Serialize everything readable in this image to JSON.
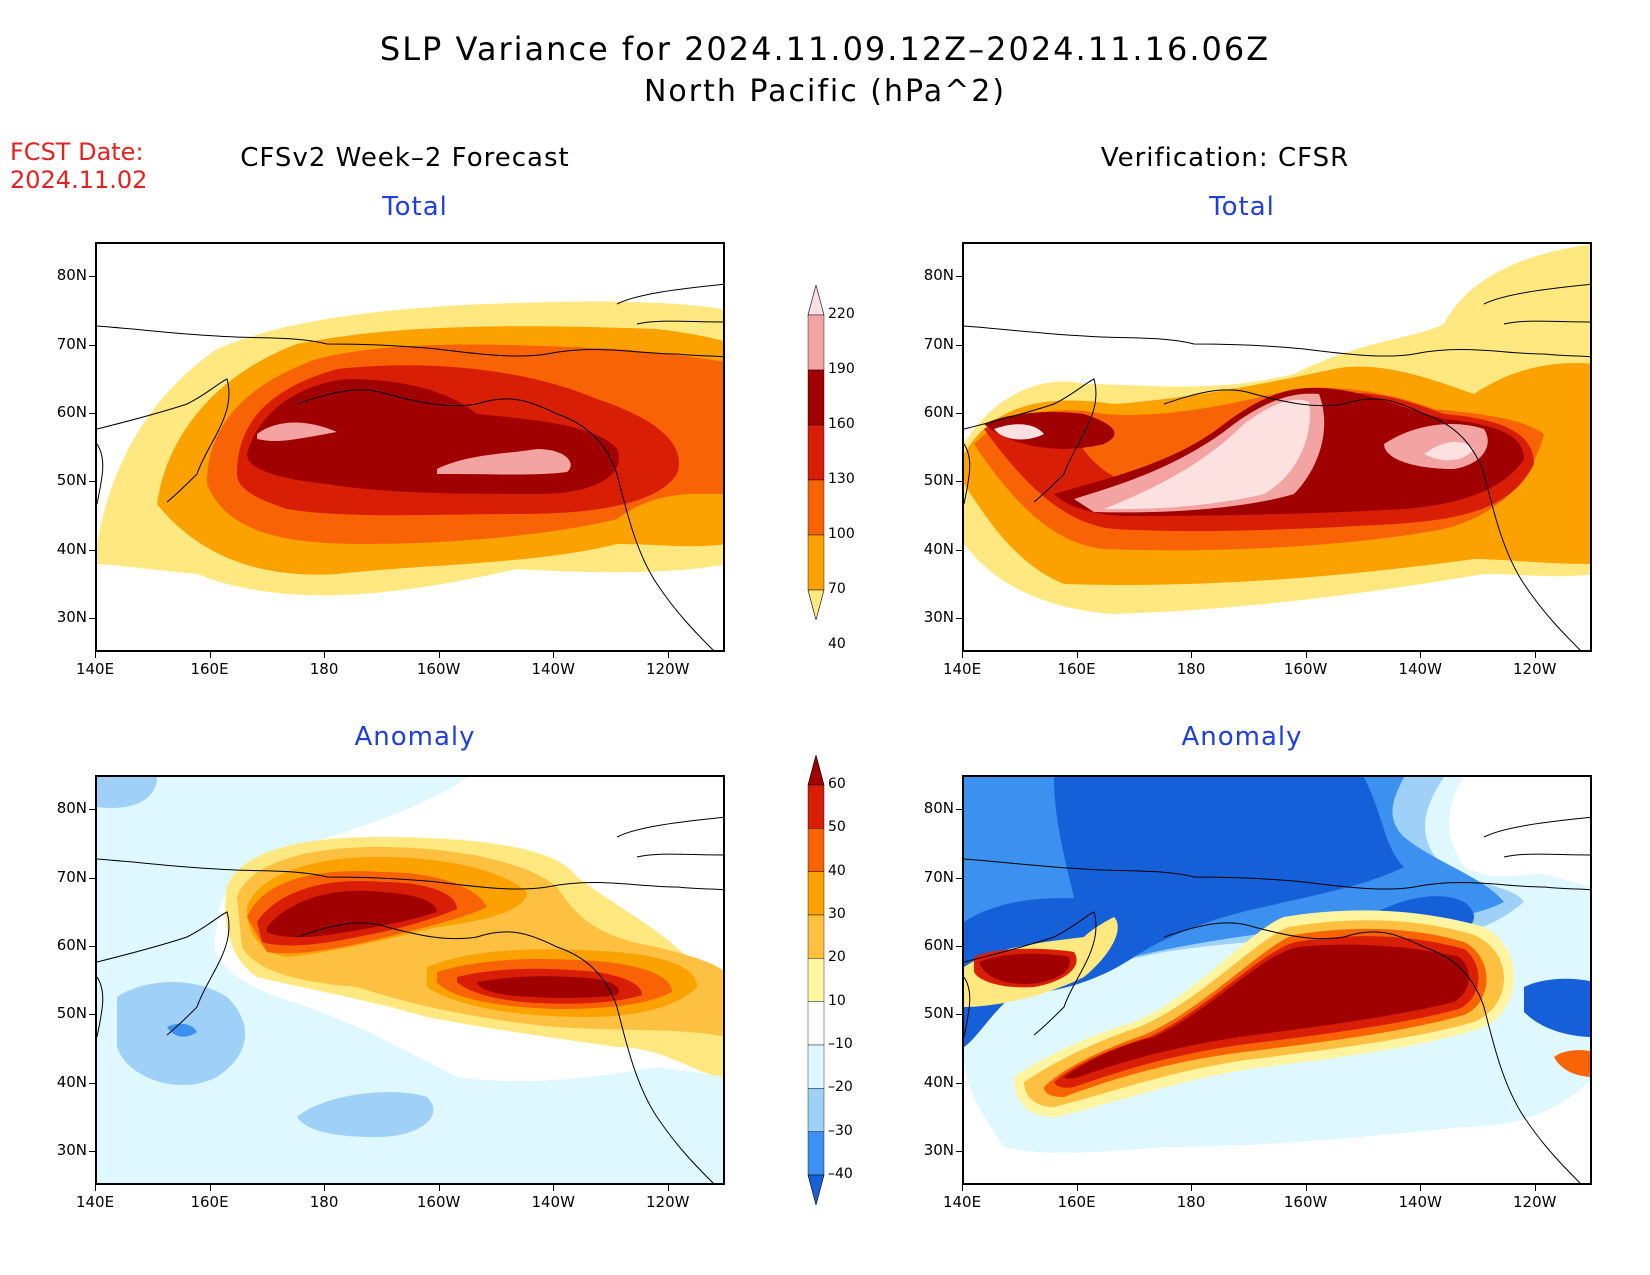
{
  "title": {
    "line1": "SLP Variance for 2024.11.09.12Z–2024.11.16.06Z",
    "line2": "North Pacific (hPa^2)"
  },
  "forecast_date": {
    "label": "FCST Date:",
    "value": "2024.11.02"
  },
  "columns": {
    "left": "CFSv2 Week–2 Forecast",
    "right": "Verification: CFSR"
  },
  "panels": {
    "forecast_total": {
      "title": "Total"
    },
    "verification_total": {
      "title": "Total"
    },
    "forecast_anomaly": {
      "title": "Anomaly"
    },
    "verification_anomaly": {
      "title": "Anomaly"
    }
  },
  "axes": {
    "lat_ticks": [
      "80N",
      "70N",
      "60N",
      "50N",
      "40N",
      "30N"
    ],
    "lat_values": [
      80,
      70,
      60,
      50,
      40,
      30
    ],
    "lon_ticks": [
      "140E",
      "160E",
      "180",
      "160W",
      "140W",
      "120W"
    ],
    "lon_values": [
      140,
      160,
      180,
      200,
      220,
      240
    ],
    "lon_range": [
      140,
      250
    ],
    "lat_range": [
      25,
      85
    ]
  },
  "colorbars": {
    "total": {
      "labels": [
        "220",
        "190",
        "160",
        "130",
        "100",
        "70",
        "40"
      ],
      "colors": [
        "#fde0e0",
        "#f4a3a3",
        "#a00000",
        "#d81e05",
        "#f86405",
        "#fba100",
        "#ffe880"
      ]
    },
    "anomaly": {
      "labels": [
        "60",
        "50",
        "40",
        "30",
        "20",
        "10",
        "–10",
        "–20",
        "–30",
        "–40"
      ],
      "colors": [
        "#a00000",
        "#d81e05",
        "#f86405",
        "#fba100",
        "#fdc040",
        "#fff5a0",
        "#ffffff",
        "#dff7ff",
        "#9ed0f8",
        "#3c90f0",
        "#1560d8"
      ]
    }
  },
  "colors": {
    "title_blue": "#1f3fe0",
    "fcst_red": "#e82020"
  }
}
